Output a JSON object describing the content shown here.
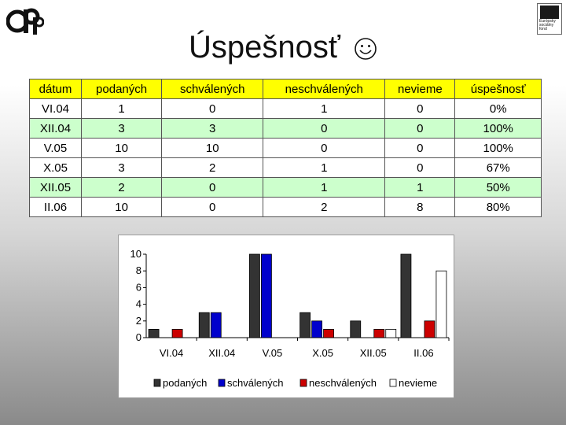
{
  "title": "Úspešnosť",
  "colors": {
    "header_bg": "#ffff00",
    "row_odd": "#ffffff",
    "row_even": "#ccffcc"
  },
  "icons": {
    "logo": "cpp-logo",
    "eu": "eu-flag-logo",
    "smiley": "smiley-icon"
  },
  "eu_logo_text": [
    "Európsky",
    "sociálny",
    "fond"
  ],
  "table": {
    "headers": [
      "dátum",
      "podaných",
      "schválených",
      "neschválených",
      "nevieme",
      "úspešnosť"
    ],
    "rows": [
      [
        "VI.04",
        "1",
        "0",
        "1",
        "0",
        "0%"
      ],
      [
        "XII.04",
        "3",
        "3",
        "0",
        "0",
        "100%"
      ],
      [
        "V.05",
        "10",
        "10",
        "0",
        "0",
        "100%"
      ],
      [
        "X.05",
        "3",
        "2",
        "1",
        "0",
        "67%"
      ],
      [
        "XII.05",
        "2",
        "0",
        "1",
        "1",
        "50%"
      ],
      [
        "II.06",
        "10",
        "0",
        "2",
        "8",
        "80%"
      ]
    ]
  },
  "chart_data": {
    "type": "bar",
    "categories": [
      "VI.04",
      "XII.04",
      "V.05",
      "X.05",
      "XII.05",
      "II.06"
    ],
    "series": [
      {
        "name": "podaných",
        "values": [
          1,
          3,
          10,
          3,
          2,
          10
        ],
        "color": "#333333"
      },
      {
        "name": "schválených",
        "values": [
          0,
          3,
          10,
          2,
          0,
          0
        ],
        "color": "#0000cc"
      },
      {
        "name": "neschválených",
        "values": [
          1,
          0,
          0,
          1,
          1,
          2
        ],
        "color": "#cc0000"
      },
      {
        "name": "nevieme",
        "values": [
          0,
          0,
          0,
          0,
          1,
          8
        ],
        "color": "#ffffff"
      }
    ],
    "yticks": [
      0,
      2,
      4,
      6,
      8,
      10
    ],
    "ylim": [
      0,
      10
    ],
    "legend_position": "bottom",
    "grid": false
  }
}
